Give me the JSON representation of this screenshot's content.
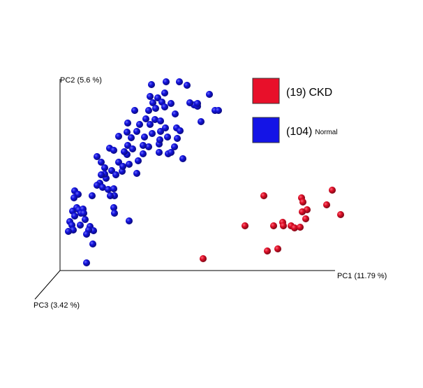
{
  "chart_data": {
    "type": "scatter",
    "x_label": "PC1 (11.79 %)",
    "y_label": "PC2 (5.6 %)",
    "z_label": "PC3 (3.42 %)",
    "xlim": [
      0,
      400
    ],
    "ylim": [
      0,
      280
    ],
    "series": [
      {
        "name": "CKD",
        "count_label": "(19)",
        "color": "#e8102a",
        "x": [
          292,
          346,
          348,
          390,
          382,
          354,
          347,
          402,
          352,
          319,
          306,
          320,
          331,
          336,
          344,
          265,
          312,
          297,
          205
        ],
        "values": [
          107,
          104,
          98,
          115,
          94,
          87,
          84,
          80,
          74,
          69,
          64,
          64,
          64,
          61,
          62,
          64,
          31,
          28,
          17
        ]
      },
      {
        "name": "Normal",
        "count_label": "(104)",
        "color": "#1414e6",
        "x": [
          131,
          152,
          171,
          182,
          140,
          146,
          159,
          150,
          214,
          192,
          197,
          222,
          227,
          202,
          186,
          133,
          127,
          137,
          107,
          123,
          136,
          129,
          144,
          165,
          167,
          97,
          114,
          110,
          96,
          102,
          121,
          132,
          144,
          151,
          154,
          168,
          164,
          176,
          142,
          127,
          119,
          97,
          104,
          96,
          99,
          112,
          142,
          155,
          159,
          71,
          77,
          53,
          59,
          64,
          74,
          80,
          66,
          57,
          53,
          61,
          69,
          77,
          78,
          89,
          110,
          46,
          21,
          26,
          20,
          24,
          18,
          21,
          27,
          33,
          30,
          36,
          29,
          14,
          17,
          19,
          12,
          43,
          48,
          41,
          38,
          77,
          78,
          99,
          47,
          38,
          72,
          64,
          84,
          92,
          84,
          119,
          143,
          172,
          129,
          150,
          197,
          90,
          59,
          34
        ],
        "values": [
          266,
          270,
          270,
          265,
          247,
          241,
          239,
          234,
          252,
          237,
          235,
          229,
          229,
          213,
          240,
          240,
          229,
          232,
          229,
          217,
          216,
          209,
          214,
          224,
          204,
          211,
          209,
          199,
          198,
          190,
          191,
          196,
          199,
          204,
          191,
          189,
          177,
          160,
          181,
          177,
          179,
          179,
          174,
          166,
          152,
          157,
          169,
          167,
          169,
          175,
          172,
          163,
          155,
          147,
          143,
          137,
          132,
          125,
          122,
          119,
          116,
          117,
          107,
          142,
          139,
          107,
          114,
          109,
          104,
          90,
          85,
          78,
          87,
          88,
          82,
          73,
          65,
          70,
          65,
          58,
          56,
          63,
          57,
          58,
          52,
          90,
          82,
          71,
          38,
          11,
          107,
          138,
          155,
          170,
          192,
          167,
          187,
          200,
          249,
          254,
          239,
          149,
          137,
          82
        ]
      }
    ]
  }
}
